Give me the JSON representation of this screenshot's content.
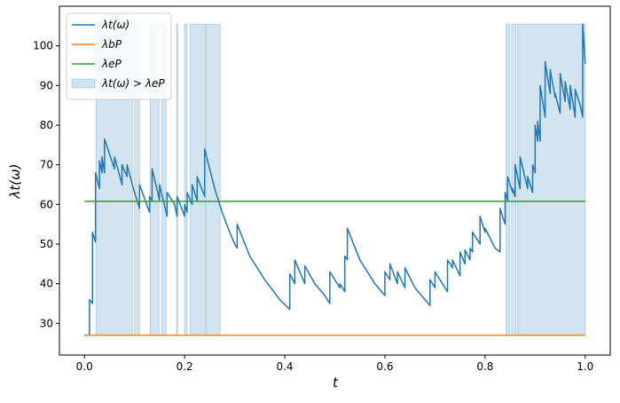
{
  "chart_data": {
    "type": "line",
    "xlabel": "t",
    "ylabel": "λt(ω)",
    "xlim": [
      -0.05,
      1.05
    ],
    "ylim": [
      22,
      110
    ],
    "xticks": [
      {
        "value": 0,
        "label": "0.0"
      },
      0.2,
      0.4,
      0.6,
      0.8,
      {
        "value": 1,
        "label": "1.0"
      }
    ],
    "yticks": [
      30,
      40,
      50,
      60,
      70,
      80,
      90,
      100
    ],
    "legend": "upper-left",
    "series": [
      {
        "name": "λt(ω)",
        "color": "#1f77b4",
        "x": [
          0,
          0.01,
          0.01,
          0.016,
          0.016,
          0.022,
          0.022,
          0.03,
          0.03,
          0.035,
          0.035,
          0.04,
          0.04,
          0.06,
          0.06,
          0.075,
          0.075,
          0.085,
          0.085,
          0.1,
          0.11,
          0.11,
          0.13,
          0.13,
          0.135,
          0.135,
          0.15,
          0.15,
          0.165,
          0.165,
          0.18,
          0.185,
          0.185,
          0.2,
          0.2,
          0.205,
          0.205,
          0.215,
          0.215,
          0.225,
          0.225,
          0.24,
          0.24,
          0.26,
          0.275,
          0.29,
          0.3,
          0.305,
          0.305,
          0.33,
          0.36,
          0.39,
          0.41,
          0.41,
          0.42,
          0.42,
          0.44,
          0.44,
          0.46,
          0.48,
          0.49,
          0.49,
          0.51,
          0.51,
          0.52,
          0.52,
          0.525,
          0.525,
          0.55,
          0.58,
          0.6,
          0.6,
          0.61,
          0.61,
          0.625,
          0.625,
          0.64,
          0.64,
          0.66,
          0.69,
          0.69,
          0.7,
          0.7,
          0.725,
          0.725,
          0.735,
          0.735,
          0.75,
          0.75,
          0.76,
          0.76,
          0.77,
          0.77,
          0.775,
          0.775,
          0.79,
          0.79,
          0.8,
          0.8,
          0.82,
          0.83,
          0.83,
          0.835,
          0.84,
          0.84,
          0.845,
          0.845,
          0.855,
          0.855,
          0.86,
          0.86,
          0.87,
          0.87,
          0.885,
          0.885,
          0.895,
          0.895,
          0.9,
          0.9,
          0.905,
          0.905,
          0.91,
          0.91,
          0.92,
          0.92,
          0.93,
          0.93,
          0.94,
          0.94,
          0.95,
          0.95,
          0.96,
          0.96,
          0.97,
          0.97,
          0.98,
          0.98,
          0.99,
          0.995,
          0.995,
          1.0
        ],
        "values": [
          27,
          27,
          36,
          35,
          53,
          50.5,
          68,
          64,
          71,
          68,
          72,
          68,
          76.5,
          69,
          72,
          65,
          70,
          67,
          70,
          63,
          59,
          65,
          58,
          62,
          61,
          69,
          61,
          65,
          57,
          63,
          60,
          57,
          62,
          57,
          60,
          58,
          63,
          60,
          65,
          61,
          67,
          62,
          74,
          64,
          58,
          53,
          50,
          49,
          55,
          47,
          41,
          36,
          33.5,
          42.5,
          40,
          46,
          40,
          44.5,
          40,
          37,
          35,
          43,
          39,
          40,
          38,
          47,
          46,
          54,
          46,
          40,
          37,
          43,
          41,
          45,
          40,
          43,
          39,
          44,
          39,
          34.5,
          41,
          39,
          43,
          38,
          46,
          44,
          46,
          42,
          48,
          45,
          48.5,
          46,
          49,
          48,
          53,
          50,
          57,
          53,
          54,
          49,
          48,
          59,
          57,
          55,
          63,
          61,
          67,
          63,
          64,
          62,
          70,
          64,
          72,
          64,
          67,
          63,
          70,
          68,
          80,
          76,
          81,
          76,
          90,
          82,
          96,
          88,
          94,
          87,
          88,
          83,
          93,
          86,
          91,
          84,
          90,
          82,
          89,
          85,
          82,
          105.5,
          95.5
        ]
      },
      {
        "name": "λbP",
        "color": "#ff7f0e",
        "x": [
          0,
          1
        ],
        "values": [
          27,
          27
        ]
      },
      {
        "name": "λeP",
        "color": "#2ca02c",
        "x": [
          0,
          1
        ],
        "values": [
          60.8,
          60.8
        ]
      }
    ],
    "spans": {
      "name": "λt(ω) > λeP",
      "color": "#1f77b4",
      "y_range": [
        27,
        105.5
      ],
      "x_ranges": [
        [
          0.023,
          0.096
        ],
        [
          0.1,
          0.11
        ],
        [
          0.131,
          0.149
        ],
        [
          0.154,
          0.163
        ],
        [
          0.184,
          0.186
        ],
        [
          0.2,
          0.205
        ],
        [
          0.211,
          0.241
        ],
        [
          0.243,
          0.271
        ],
        [
          0.842,
          0.849
        ],
        [
          0.853,
          0.862
        ],
        [
          0.865,
          1.0
        ]
      ]
    }
  }
}
